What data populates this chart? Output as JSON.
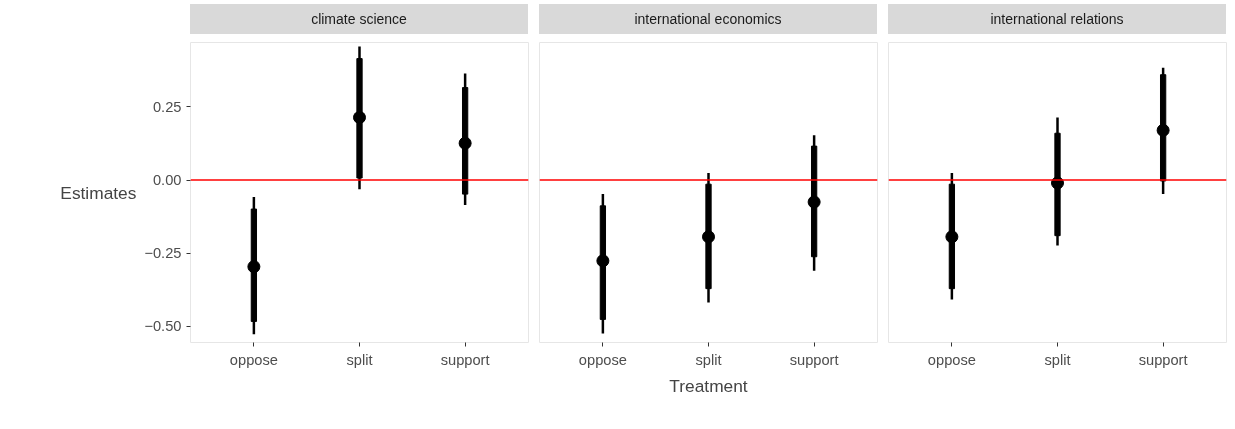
{
  "chart_data": [
    {
      "type": "scatter",
      "title": "climate science",
      "ylabel": "Estimates",
      "categories": [
        "oppose",
        "split",
        "support"
      ],
      "ylim": [
        -0.555,
        0.47
      ],
      "yticks": [
        {
          "value": -0.5,
          "label": "−0.50"
        },
        {
          "value": -0.25,
          "label": "−0.25"
        },
        {
          "value": 0,
          "label": "0.00"
        },
        {
          "value": 0.25,
          "label": "0.25"
        }
      ],
      "grid": false,
      "marker": "circle",
      "ref_lines": [
        {
          "axis": "y",
          "value": 0,
          "color": "#ff0000"
        }
      ],
      "series": [
        {
          "type": "bar",
          "color": "#000000",
          "base": [
            -0.483,
            0.007,
            -0.048
          ],
          "values": [
            0.384,
            0.408,
            0.364
          ]
        },
        {
          "color": "#000000",
          "values": [
            -0.296,
            0.214,
            0.126
          ],
          "errors": [
            [
              -0.527,
              -0.058
            ],
            [
              -0.031,
              0.456
            ],
            [
              -0.085,
              0.364
            ]
          ]
        }
      ]
    },
    {
      "type": "scatter",
      "title": "international economics",
      "xlabel": "Treatment",
      "categories": [
        "oppose",
        "split",
        "support"
      ],
      "ylim": [
        -0.555,
        0.47
      ],
      "tick_labels": "x",
      "grid": false,
      "marker": "circle",
      "ref_lines": [
        {
          "axis": "y",
          "value": 0,
          "color": "#ff0000"
        }
      ],
      "series": [
        {
          "type": "bar",
          "color": "#000000",
          "base": [
            -0.476,
            -0.371,
            -0.262
          ],
          "values": [
            0.388,
            0.357,
            0.378
          ]
        },
        {
          "color": "#000000",
          "values": [
            -0.276,
            -0.194,
            -0.075
          ],
          "errors": [
            [
              -0.524,
              -0.048
            ],
            [
              -0.418,
              0.024
            ],
            [
              -0.31,
              0.153
            ]
          ]
        }
      ]
    },
    {
      "type": "scatter",
      "title": "international relations",
      "categories": [
        "oppose",
        "split",
        "support"
      ],
      "ylim": [
        -0.555,
        0.47
      ],
      "tick_labels": "x",
      "grid": false,
      "marker": "circle",
      "ref_lines": [
        {
          "axis": "y",
          "value": 0,
          "color": "#ff0000"
        }
      ],
      "series": [
        {
          "type": "bar",
          "color": "#000000",
          "base": [
            -0.371,
            -0.19,
            -0.003
          ],
          "values": [
            0.357,
            0.35,
            0.363
          ]
        },
        {
          "color": "#000000",
          "values": [
            -0.194,
            -0.01,
            0.17
          ],
          "errors": [
            [
              -0.408,
              0.024
            ],
            [
              -0.224,
              0.214
            ],
            [
              -0.048,
              0.384
            ]
          ]
        }
      ]
    }
  ]
}
